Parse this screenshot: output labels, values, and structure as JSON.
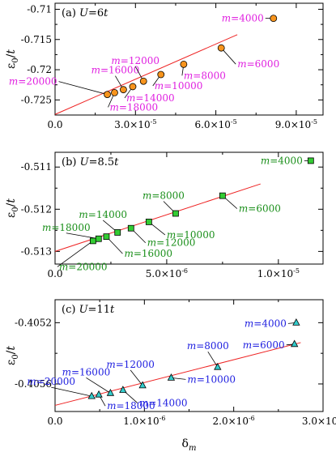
{
  "chart_data": [
    {
      "type": "scatter",
      "panel_label": "(a) U=6t",
      "ylabel": "ε0/t",
      "xlabel": "",
      "xlim": [
        0,
        0.0001
      ],
      "ylim": [
        -0.7275,
        -0.709
      ],
      "x_ticks": [
        {
          "value": 0,
          "text": "0.0",
          "exp": ""
        },
        {
          "value": 3e-05,
          "text": "3.0×10",
          "exp": "-5"
        },
        {
          "value": 6e-05,
          "text": "6.0×10",
          "exp": "-5"
        },
        {
          "value": 9e-05,
          "text": "9.0×10",
          "exp": "-5"
        }
      ],
      "y_ticks": [
        {
          "value": -0.71,
          "text": "-0.71"
        },
        {
          "value": -0.715,
          "text": "-0.715"
        },
        {
          "value": -0.72,
          "text": "-0.72"
        },
        {
          "value": -0.725,
          "text": "-0.725"
        }
      ],
      "marker": "circle",
      "marker_color": "#f7941d",
      "label_color": "#e020e0",
      "fit_line": {
        "x": [
          0,
          6.8e-05
        ],
        "y": [
          -0.7274,
          -0.7142
        ],
        "color": "#ee2222"
      },
      "points": [
        {
          "x": 1.95e-05,
          "y": -0.7241,
          "label": "m=20000"
        },
        {
          "x": 2.22e-05,
          "y": -0.7238,
          "label": "m=18000"
        },
        {
          "x": 2.55e-05,
          "y": -0.7233,
          "label": "m=16000"
        },
        {
          "x": 2.9e-05,
          "y": -0.7228,
          "label": "m=14000"
        },
        {
          "x": 3.3e-05,
          "y": -0.7219,
          "label": "m=12000"
        },
        {
          "x": 3.95e-05,
          "y": -0.7208,
          "label": "m=10000"
        },
        {
          "x": 4.8e-05,
          "y": -0.7191,
          "label": "m=8000"
        },
        {
          "x": 6.2e-05,
          "y": -0.7164,
          "label": "m=6000"
        },
        {
          "x": 8.15e-05,
          "y": -0.7115,
          "label": "m=4000"
        }
      ]
    },
    {
      "type": "scatter",
      "panel_label": "(b) U=8.5t",
      "ylabel": "ε0/t",
      "xlabel": "",
      "xlim": [
        0,
        1.2e-05
      ],
      "ylim": [
        -0.5133,
        -0.51065
      ],
      "x_ticks": [
        {
          "value": 0,
          "text": "0.0",
          "exp": ""
        },
        {
          "value": 5e-06,
          "text": "5.0×10",
          "exp": "-6"
        },
        {
          "value": 1e-05,
          "text": "1.0×10",
          "exp": "-5"
        }
      ],
      "y_ticks": [
        {
          "value": -0.511,
          "text": "-0.511"
        },
        {
          "value": -0.512,
          "text": "-0.512"
        },
        {
          "value": -0.513,
          "text": "-0.513"
        }
      ],
      "marker": "square",
      "marker_color": "#33cc33",
      "label_color": "#1a8f1a",
      "fit_line": {
        "x": [
          0,
          9.2e-06
        ],
        "y": [
          -0.513,
          -0.5114
        ],
        "color": "#ee2222"
      },
      "points": [
        {
          "x": 1.7e-06,
          "y": -0.51275,
          "label": "m=20000"
        },
        {
          "x": 1.95e-06,
          "y": -0.5127,
          "label": "m=18000"
        },
        {
          "x": 2.3e-06,
          "y": -0.51265,
          "label": "m=16000"
        },
        {
          "x": 2.8e-06,
          "y": -0.51255,
          "label": "m=14000"
        },
        {
          "x": 3.4e-06,
          "y": -0.51245,
          "label": "m=12000"
        },
        {
          "x": 4.2e-06,
          "y": -0.5123,
          "label": "m=10000"
        },
        {
          "x": 5.4e-06,
          "y": -0.5121,
          "label": "m=8000"
        },
        {
          "x": 7.5e-06,
          "y": -0.51168,
          "label": "m=6000"
        },
        {
          "x": 1.145e-05,
          "y": -0.51085,
          "label": "m=4000"
        }
      ]
    },
    {
      "type": "scatter",
      "panel_label": "(c) U=11t",
      "ylabel": "ε0/t",
      "xlabel": "δm",
      "xlim": [
        0,
        3e-06
      ],
      "ylim": [
        -0.40578,
        -0.40505
      ],
      "x_ticks": [
        {
          "value": 0,
          "text": "0.0",
          "exp": ""
        },
        {
          "value": 1e-06,
          "text": "1.0×10",
          "exp": "-6"
        },
        {
          "value": 2e-06,
          "text": "2.0×10",
          "exp": "-6"
        },
        {
          "value": 3e-06,
          "text": "3.0×10",
          "exp": "-6"
        }
      ],
      "y_ticks": [
        {
          "value": -0.4052,
          "text": "-0.4052"
        },
        {
          "value": -0.4056,
          "text": "-0.4056"
        }
      ],
      "marker": "triangle",
      "marker_color": "#33cccc",
      "label_color": "#2020e0",
      "fit_line": {
        "x": [
          0,
          2.75e-06
        ],
        "y": [
          -0.40574,
          -0.40533
        ],
        "color": "#ee2222"
      },
      "points": [
        {
          "x": 4.1e-07,
          "y": -0.40568,
          "label": "m=20000"
        },
        {
          "x": 4.9e-07,
          "y": -0.40567,
          "label": "m=18000"
        },
        {
          "x": 6.2e-07,
          "y": -0.40566,
          "label": "m=16000"
        },
        {
          "x": 7.6e-07,
          "y": -0.40564,
          "label": "m=14000"
        },
        {
          "x": 9.8e-07,
          "y": -0.40561,
          "label": "m=12000"
        },
        {
          "x": 1.3e-06,
          "y": -0.40556,
          "label": "m=10000"
        },
        {
          "x": 1.82e-06,
          "y": -0.40549,
          "label": "m=8000"
        },
        {
          "x": 2.68e-06,
          "y": -0.40534,
          "label": "m=6000"
        },
        {
          "x": 2.7e-06,
          "y": -0.4052,
          "label": "m=4000"
        }
      ]
    }
  ]
}
